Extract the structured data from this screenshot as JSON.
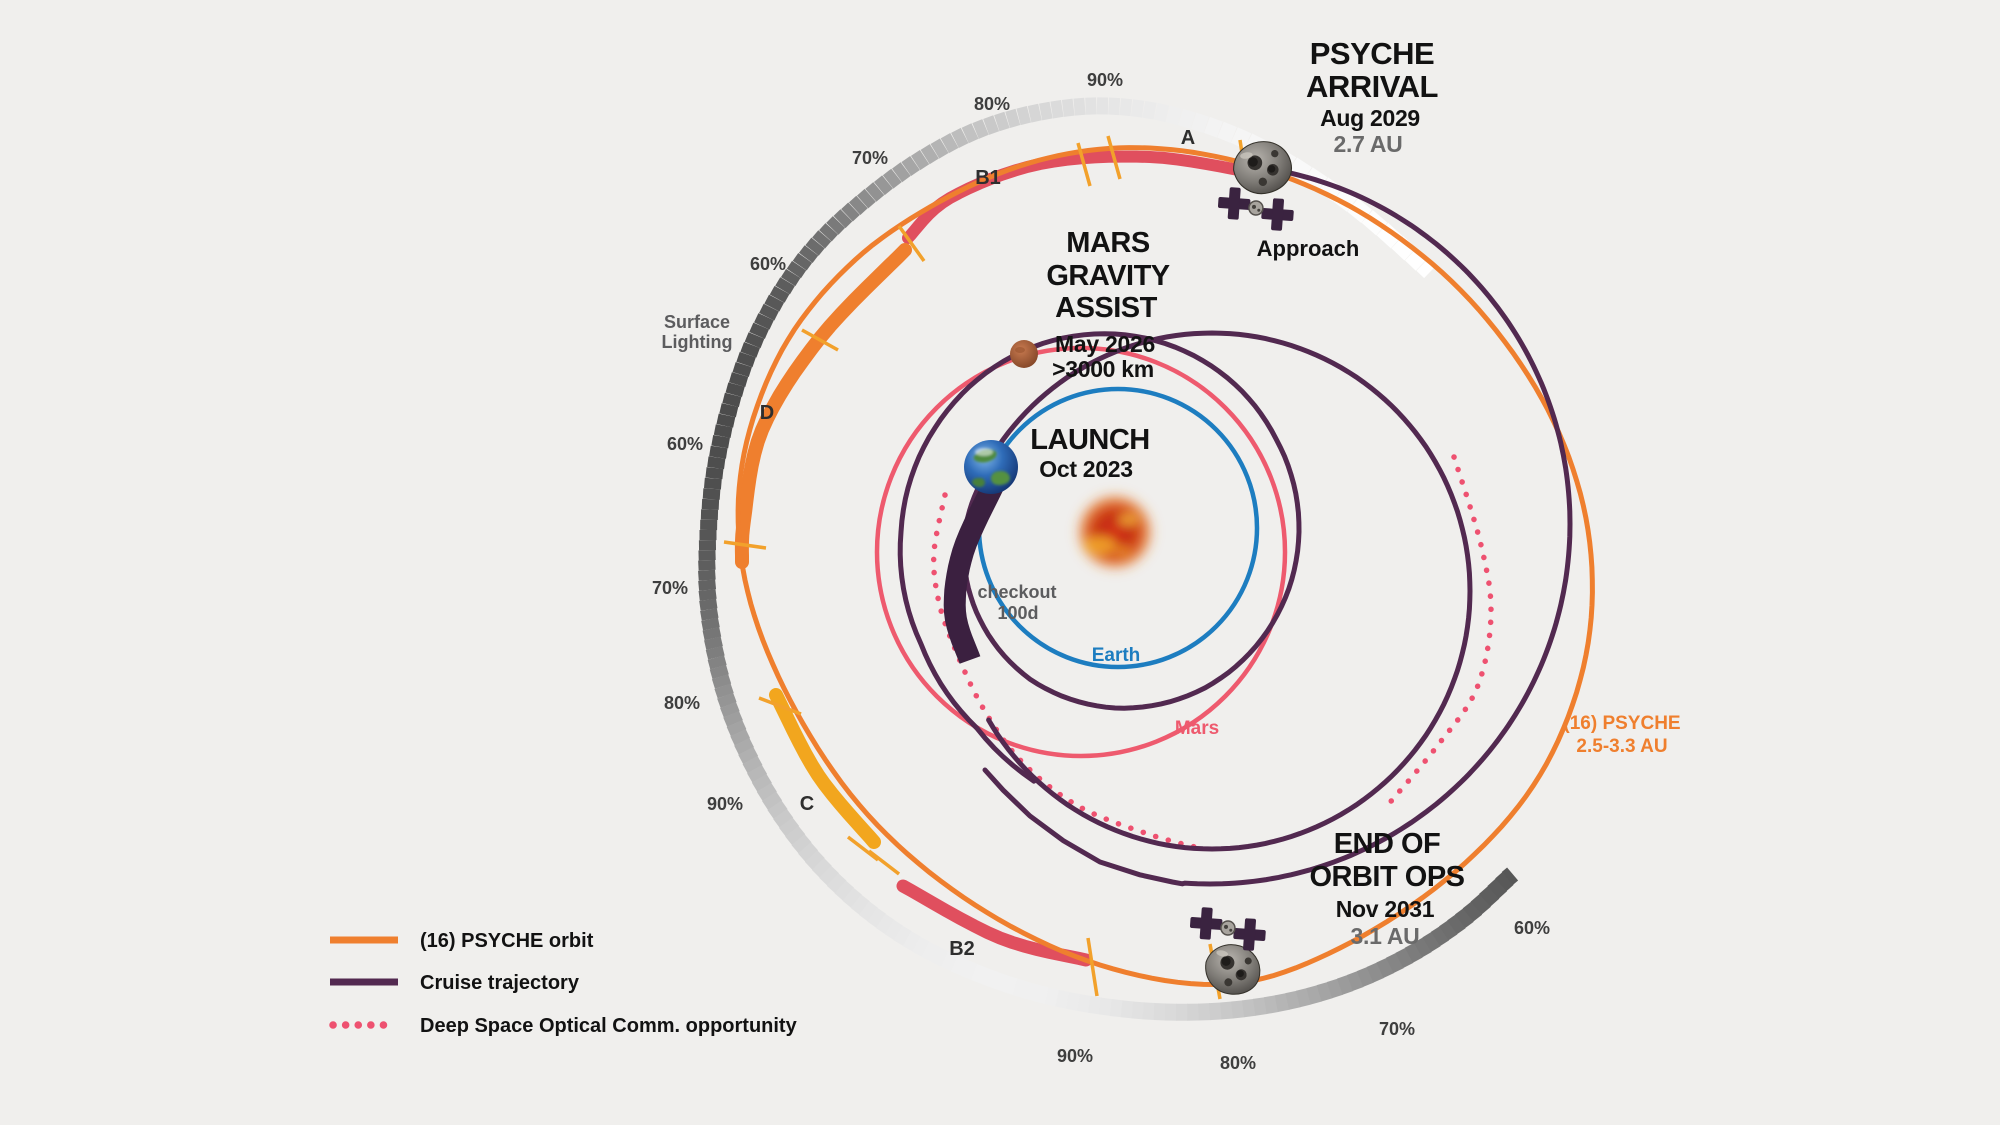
{
  "milestones": {
    "arrival": {
      "title_line1": "PSYCHE",
      "title_line2": "ARRIVAL",
      "date": "Aug 2029",
      "distance": "2.7 AU"
    },
    "mars_gravity_assist": {
      "title_line1": "MARS",
      "title_line2": "GRAVITY",
      "title_line3": "ASSIST",
      "date": "May 2026",
      "distance": ">3000 km"
    },
    "launch": {
      "title": "LAUNCH",
      "date": "Oct 2023"
    },
    "end_of_orbit_ops": {
      "title_line1": "END OF",
      "title_line2": "ORBIT OPS",
      "date": "Nov 2031",
      "distance": "3.1 AU"
    }
  },
  "labels": {
    "approach": "Approach",
    "checkout_line1": "checkout",
    "checkout_line2": "100d",
    "earth_orbit": "Earth",
    "mars_orbit": "Mars",
    "psyche_orbit_line1": "(16) PSYCHE",
    "psyche_orbit_line2": "2.5-3.3 AU",
    "surface_lighting_line1": "Surface",
    "surface_lighting_line2": "Lighting"
  },
  "orbit_phases": [
    {
      "label": "A"
    },
    {
      "label": "B1"
    },
    {
      "label": "D"
    },
    {
      "label": "C"
    },
    {
      "label": "B2"
    }
  ],
  "surface_lighting_percents": [
    {
      "value": "90%"
    },
    {
      "value": "80%"
    },
    {
      "value": "70%"
    },
    {
      "value": "60%"
    },
    {
      "value": "60%"
    },
    {
      "value": "70%"
    },
    {
      "value": "80%"
    },
    {
      "value": "90%"
    },
    {
      "value": "90%"
    },
    {
      "value": "80%"
    },
    {
      "value": "70%"
    },
    {
      "value": "60%"
    }
  ],
  "legend": [
    {
      "label": "(16) PSYCHE orbit",
      "style": "solid",
      "color_key": "psyche_orange"
    },
    {
      "label": "Cruise trajectory",
      "style": "solid",
      "color_key": "cruise_purple"
    },
    {
      "label": "Deep Space Optical Comm. opportunity",
      "style": "dotted",
      "color_key": "dsoc_pink"
    }
  ],
  "colors": {
    "background": "#f0efed",
    "psyche_orange": "#ef7f2e",
    "cruise_purple": "#522950",
    "checkout_purple": "#3b2040",
    "dsoc_pink": "#ee5170",
    "earth_blue": "#1d7dc0",
    "mars_red": "#ee5a6e",
    "band_red": "#e04f5e",
    "band_gold": "#f2a61e",
    "tick_orange": "#f2a12b",
    "text_dark": "#121212",
    "text_gray": "#6a6a6a",
    "text_gray2": "#5c5c5e",
    "percent_gray": "#3e3e3e",
    "ring_dark": "#4c4c4c",
    "ring_light": "#ffffff"
  }
}
